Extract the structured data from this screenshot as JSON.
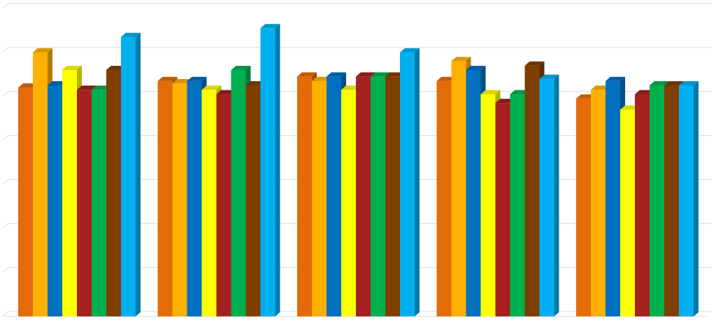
{
  "chart_data": {
    "type": "bar",
    "style": "3d-clustered-column",
    "title": "",
    "xlabel": "",
    "ylabel": "",
    "categories": [
      "",
      "",
      "",
      "",
      ""
    ],
    "ylim": [
      0,
      7
    ],
    "grid": true,
    "legend": "none",
    "series": [
      {
        "color": "#E36C09",
        "values": [
          5.2,
          5.35,
          5.45,
          5.35,
          4.95
        ]
      },
      {
        "color": "#FFB000",
        "values": [
          6.0,
          5.3,
          5.35,
          5.8,
          5.15
        ]
      },
      {
        "color": "#0070C0",
        "values": [
          5.25,
          5.35,
          5.45,
          5.6,
          5.35
        ]
      },
      {
        "color": "#FFFF00",
        "values": [
          5.6,
          5.15,
          5.15,
          5.05,
          4.7
        ]
      },
      {
        "color": "#A52020",
        "values": [
          5.15,
          5.05,
          5.45,
          4.85,
          5.05
        ]
      },
      {
        "color": "#00B050",
        "values": [
          5.15,
          5.6,
          5.45,
          5.05,
          5.25
        ]
      },
      {
        "color": "#7F3F00",
        "values": [
          5.6,
          5.25,
          5.45,
          5.7,
          5.25
        ]
      },
      {
        "color": "#00B0F0",
        "values": [
          6.35,
          6.55,
          6.0,
          5.4,
          5.25
        ]
      }
    ]
  }
}
